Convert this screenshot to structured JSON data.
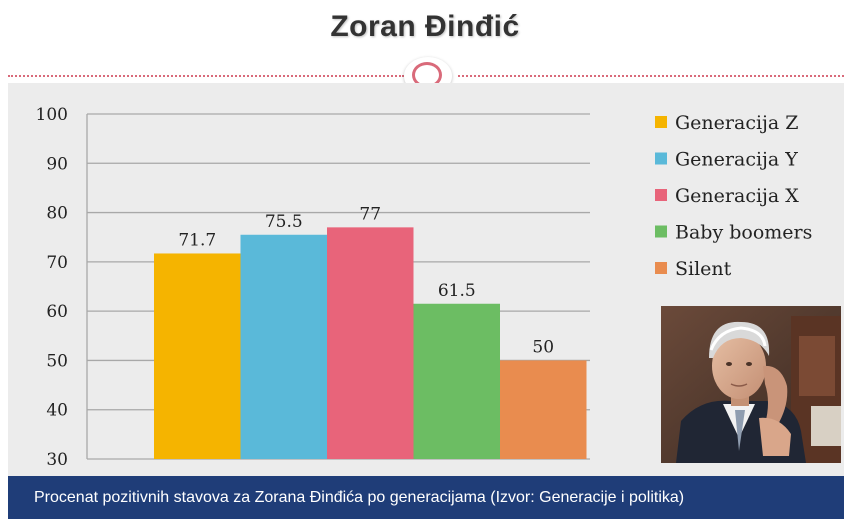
{
  "page_title": "Zoran Đinđić",
  "caption": "Procenat pozitivnih stavova za Zorana Đinđića po generacijama (Izvor: Generacije i politika)",
  "chart_data": {
    "type": "bar",
    "title": "",
    "xlabel": "",
    "ylabel": "",
    "ylim": [
      30,
      100
    ],
    "yticks": [
      30,
      40,
      50,
      60,
      70,
      80,
      90,
      100
    ],
    "grid": true,
    "legend_position": "right",
    "series": [
      {
        "name": "Generacija Z",
        "value": 71.7,
        "label": "71.7",
        "color": "#f5b400"
      },
      {
        "name": "Generacija Y",
        "value": 75.5,
        "label": "75.5",
        "color": "#5ab9d9"
      },
      {
        "name": "Generacija X",
        "value": 77,
        "label": "77",
        "color": "#e8647a"
      },
      {
        "name": "Baby boomers",
        "value": 61.5,
        "label": "61.5",
        "color": "#6cbd63"
      },
      {
        "name": "Silent",
        "value": 50,
        "label": "50",
        "color": "#e98c4f"
      }
    ]
  },
  "colors": {
    "title_text": "#333333",
    "divider": "#d96a7a",
    "caption_bar": "#1f3d78",
    "chart_background": "#ececec",
    "gridline": "#a8a8a8"
  },
  "photo": {
    "subject": "Zoran Đinđić portrait"
  }
}
